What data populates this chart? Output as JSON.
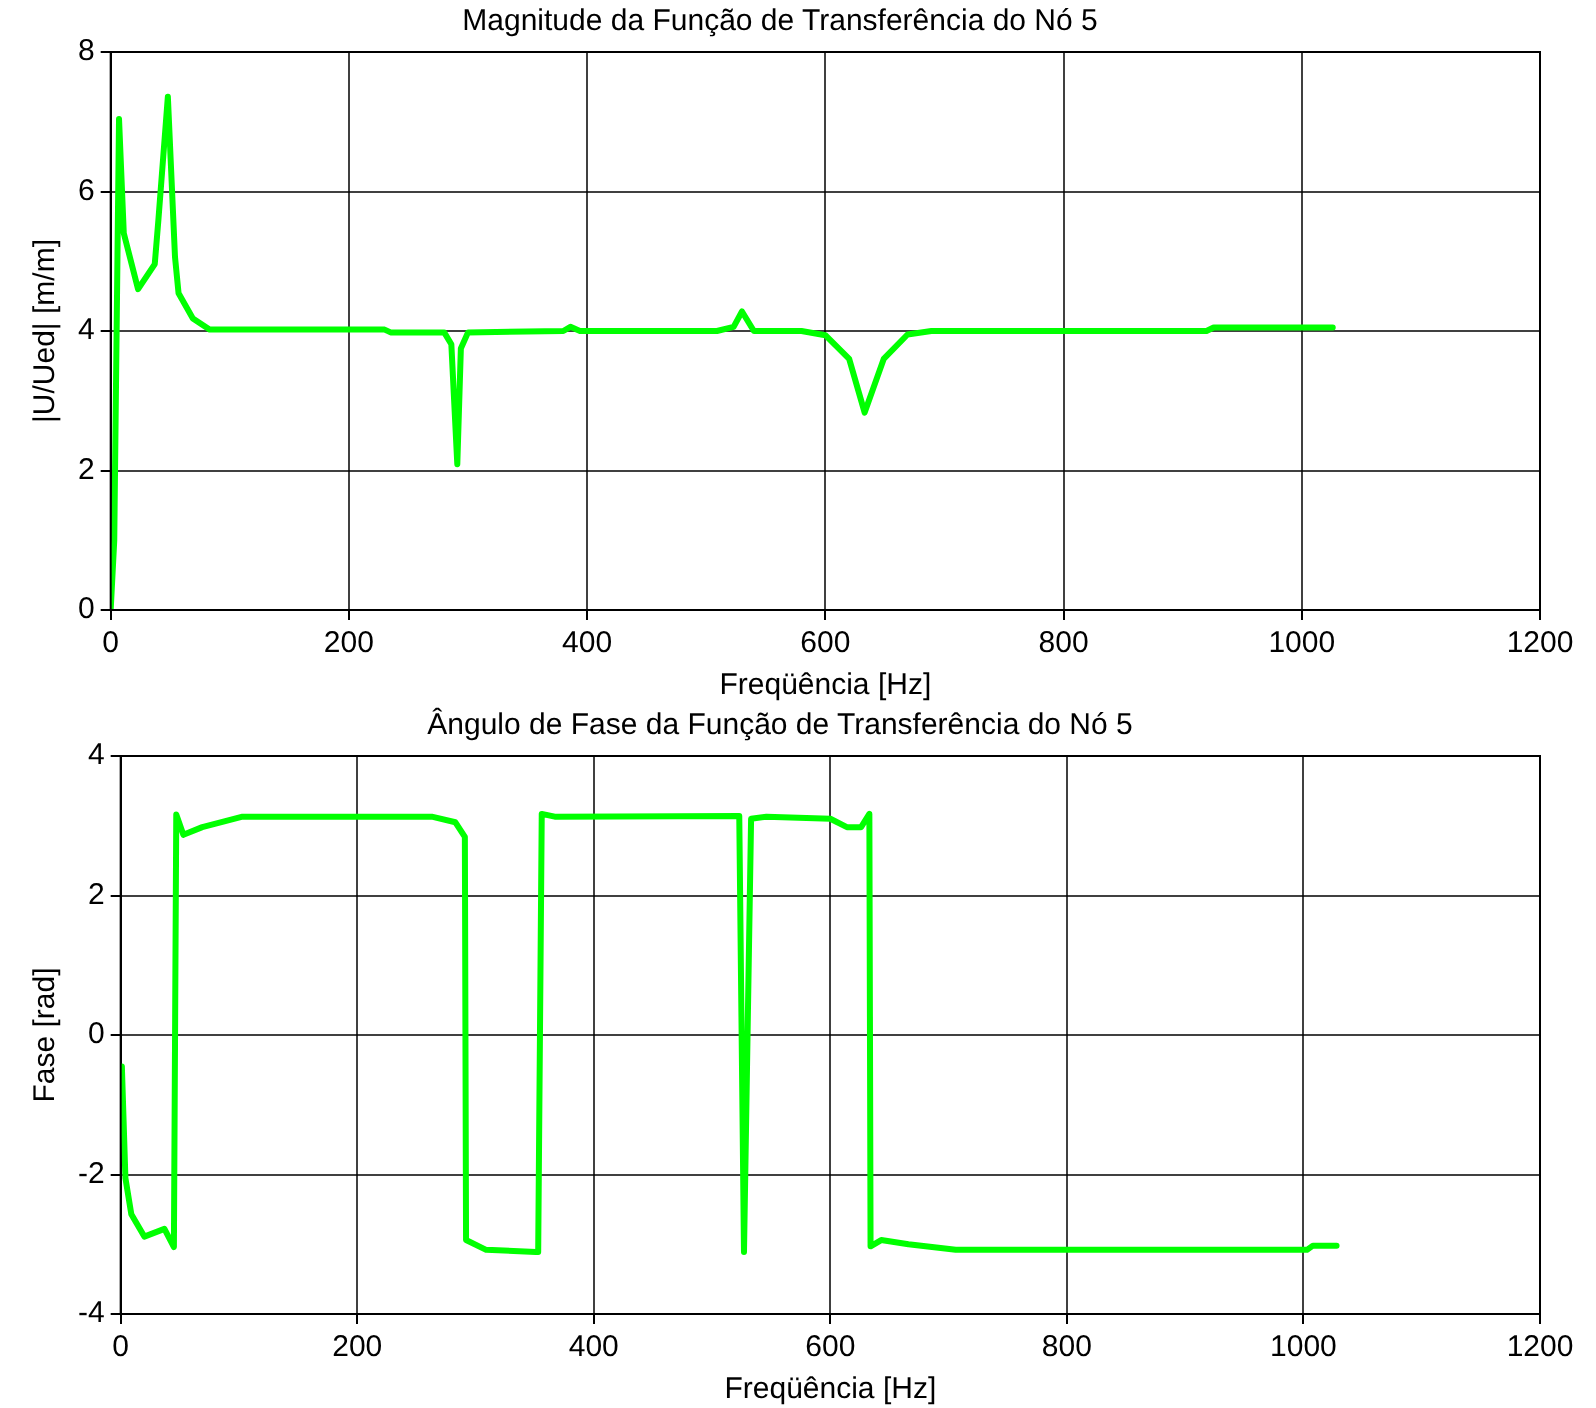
{
  "chart_data": [
    {
      "type": "line",
      "title": "Magnitude da Função de Transferência do Nó 5",
      "xlabel": "Freqüência [Hz]",
      "ylabel": "|U/Ued| [m/m]",
      "x": [
        0,
        3,
        7,
        11,
        23,
        37,
        40,
        48,
        54,
        57,
        69,
        83,
        230,
        235,
        280,
        286,
        291,
        294,
        300,
        380,
        386,
        394,
        509,
        523,
        530,
        540,
        580,
        600,
        620,
        633,
        649,
        669,
        689,
        920,
        926,
        1026
      ],
      "series": [
        {
          "color": "#00ff00",
          "values": [
            0,
            1.0,
            7.04,
            5.4,
            4.6,
            4.96,
            5.58,
            7.36,
            5.06,
            4.54,
            4.18,
            4.02,
            4.02,
            3.98,
            3.98,
            3.81,
            2.09,
            3.75,
            3.98,
            4.0,
            4.06,
            4.0,
            4.0,
            4.06,
            4.28,
            4.0,
            4.0,
            3.94,
            3.6,
            2.83,
            3.6,
            3.95,
            4.0,
            4.0,
            4.05,
            4.05
          ]
        }
      ],
      "xlim": [
        0,
        1200
      ],
      "xticks": [
        0,
        200,
        400,
        600,
        800,
        1000,
        1200
      ],
      "ylim": [
        0,
        8
      ],
      "yticks": [
        0,
        2,
        4,
        6,
        8
      ],
      "grid": true,
      "legend": false,
      "marker": "none",
      "line_style": "solid"
    },
    {
      "type": "line",
      "title": "Ângulo de Fase da Função de Transferência do Nó 5",
      "xlabel": "Freqüência [Hz]",
      "ylabel": "Fase [rad]",
      "x": [
        1,
        4,
        9,
        20,
        37,
        45,
        47,
        53,
        69,
        103,
        263,
        283,
        291,
        292,
        309,
        351,
        353,
        356,
        367,
        523,
        527,
        533,
        546,
        600,
        614,
        626,
        633,
        634,
        643,
        666,
        706,
        1003,
        1008,
        1028
      ],
      "series": [
        {
          "color": "#00ff00",
          "values": [
            -0.45,
            -2.05,
            -2.57,
            -2.89,
            -2.78,
            -3.04,
            3.16,
            2.87,
            2.98,
            3.13,
            3.13,
            3.05,
            2.84,
            -2.94,
            -3.08,
            -3.11,
            -3.11,
            3.17,
            3.13,
            3.14,
            -3.11,
            3.1,
            3.13,
            3.1,
            2.98,
            2.98,
            3.17,
            -3.03,
            -2.94,
            -3.0,
            -3.08,
            -3.08,
            -3.02,
            -3.02
          ]
        }
      ],
      "xlim": [
        0,
        1200
      ],
      "xticks": [
        0,
        200,
        400,
        600,
        800,
        1000,
        1200
      ],
      "ylim": [
        -4,
        4
      ],
      "yticks": [
        -4,
        -2,
        0,
        2,
        4
      ],
      "grid": true,
      "legend": false,
      "marker": "none",
      "line_style": "solid"
    }
  ]
}
